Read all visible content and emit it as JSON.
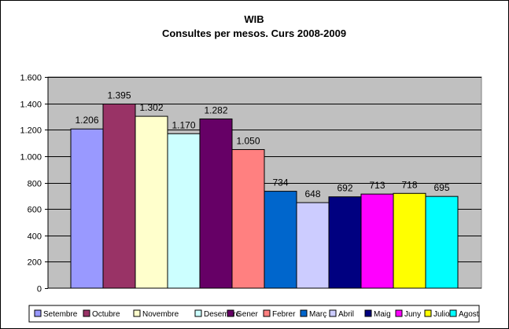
{
  "chart_data": {
    "type": "bar",
    "title": "WIB",
    "subtitle": "Consultes per mesos. Curs 2008-2009",
    "xlabel": "",
    "ylabel": "",
    "ylim": [
      0,
      1600
    ],
    "yticks": [
      0,
      200,
      400,
      600,
      800,
      1000,
      1200,
      1400,
      1600
    ],
    "ytick_labels": [
      "0",
      "200",
      "400",
      "600",
      "800",
      "1.000",
      "1.200",
      "1.400",
      "1.600"
    ],
    "grid": true,
    "legend_position": "bottom",
    "categories": [
      "Setembre",
      "Octubre",
      "Novembre",
      "Desembre",
      "Gener",
      "Febrer",
      "Març",
      "Abril",
      "Maig",
      "Juny",
      "Juliol",
      "Agost"
    ],
    "values": [
      1206,
      1395,
      1302,
      1170,
      1282,
      1050,
      734,
      648,
      692,
      713,
      718,
      695
    ],
    "data_labels": [
      "1.206",
      "1.395",
      "1.302",
      "1.170",
      "1.282",
      "1.050",
      "734",
      "648",
      "692",
      "713",
      "718",
      "695"
    ],
    "colors": [
      "#9999ff",
      "#993366",
      "#ffffcc",
      "#ccffff",
      "#660066",
      "#ff8080",
      "#0066cc",
      "#ccccff",
      "#000080",
      "#ff00ff",
      "#ffff00",
      "#00ffff"
    ],
    "plot_background": "#c0c0c0"
  }
}
